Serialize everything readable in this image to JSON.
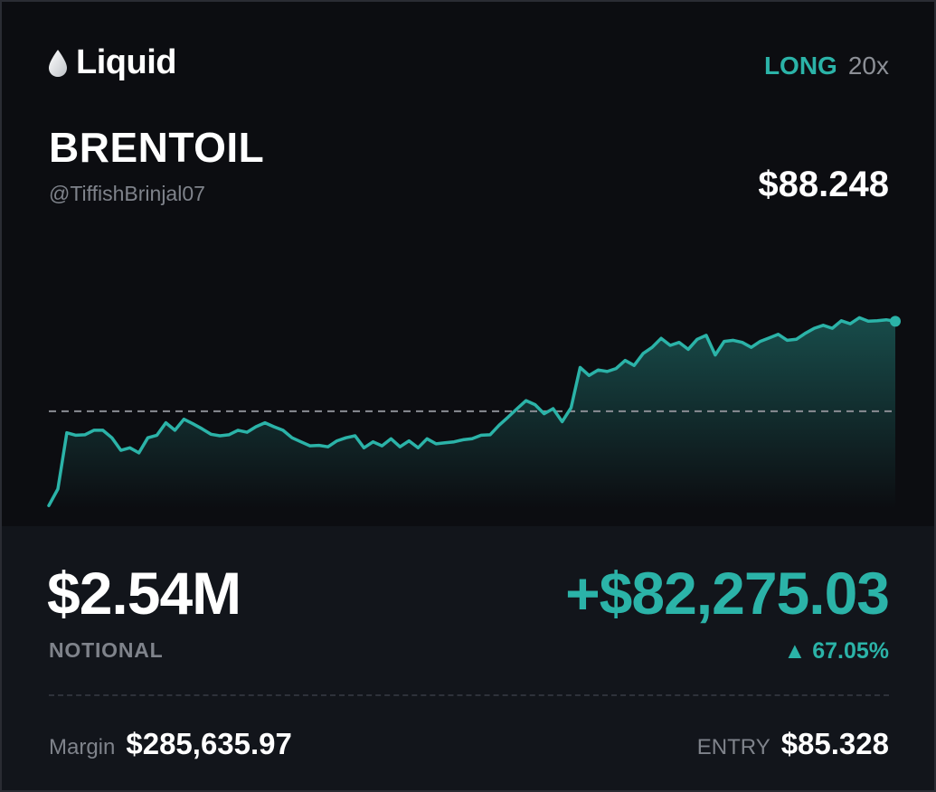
{
  "header": {
    "brand_name": "Liquid",
    "brand_icon": "droplet-icon",
    "direction": "LONG",
    "leverage": "20x",
    "ticker": "BRENTOIL",
    "handle": "@TiffishBrinjal07",
    "price": "$88.248"
  },
  "position": {
    "notional_value": "$2.54M",
    "notional_label": "NOTIONAL",
    "pnl": "+$82,275.03",
    "pnl_percent": "▲ 67.05%",
    "margin_label": "Margin",
    "margin_value": "$285,635.97",
    "entry_label": "ENTRY",
    "entry_value": "$85.328"
  },
  "colors": {
    "accent": "#2bb3a8",
    "background": "#0c0d11",
    "panel": "#12151b",
    "muted": "#7f838b"
  },
  "chart_data": {
    "type": "area",
    "reference_line": 85.328,
    "ylim": [
      83.4,
      88.8
    ],
    "values": [
      83.45,
      83.78,
      84.9,
      84.85,
      84.86,
      84.95,
      84.95,
      84.8,
      84.55,
      84.6,
      84.5,
      84.8,
      84.85,
      85.1,
      84.95,
      85.17,
      85.08,
      84.98,
      84.87,
      84.84,
      84.86,
      84.95,
      84.91,
      85.02,
      85.1,
      85.02,
      84.95,
      84.8,
      84.72,
      84.64,
      84.65,
      84.62,
      84.74,
      84.8,
      84.84,
      84.6,
      84.72,
      84.64,
      84.78,
      84.62,
      84.74,
      84.6,
      84.78,
      84.68,
      84.7,
      84.72,
      84.76,
      84.78,
      84.85,
      84.86,
      85.05,
      85.21,
      85.38,
      85.54,
      85.46,
      85.28,
      85.38,
      85.12,
      85.4,
      86.2,
      86.04,
      86.15,
      86.12,
      86.18,
      86.34,
      86.24,
      86.48,
      86.6,
      86.78,
      86.64,
      86.7,
      86.56,
      86.76,
      86.84,
      86.45,
      86.72,
      86.74,
      86.7,
      86.6,
      86.72,
      86.79,
      86.86,
      86.74,
      86.76,
      86.88,
      86.98,
      87.04,
      86.98,
      87.13,
      87.07,
      87.19,
      87.12,
      87.13,
      87.15,
      87.12
    ]
  }
}
